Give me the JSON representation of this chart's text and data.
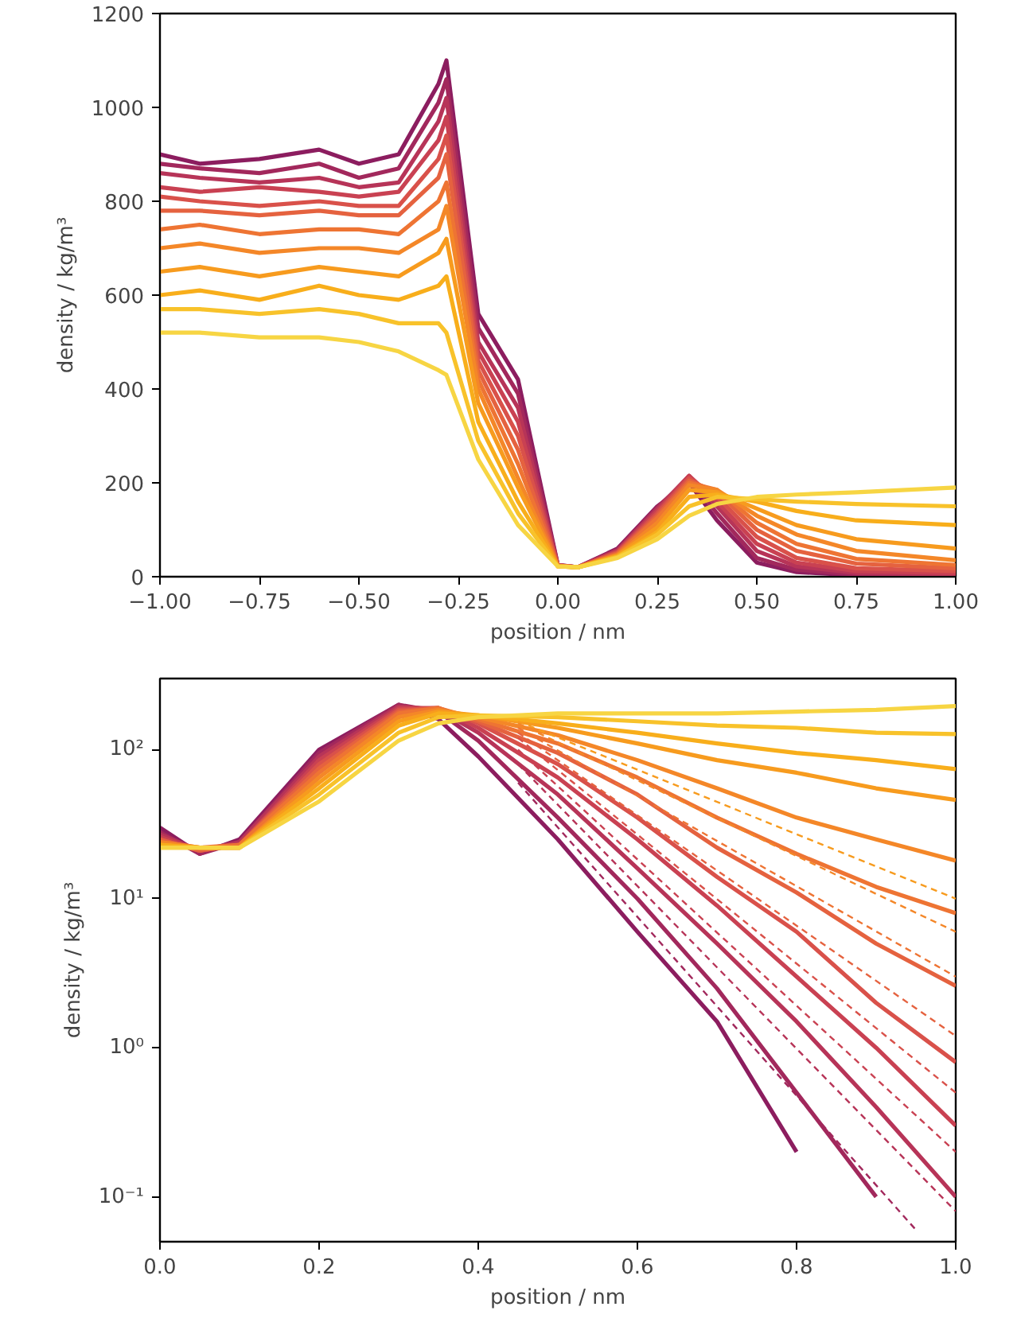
{
  "chart_data": [
    {
      "type": "line",
      "xlabel": "position / nm",
      "ylabel": "density / kg/m³",
      "xlim": [
        -1,
        1
      ],
      "ylim": [
        0,
        1200
      ],
      "xticks": [
        {
          "value": -1,
          "label": "−1.00"
        },
        {
          "value": -0.75,
          "label": "−0.75"
        },
        {
          "value": -0.5,
          "label": "−0.50"
        },
        {
          "value": -0.25,
          "label": "−0.25"
        },
        {
          "value": 0,
          "label": "0.00"
        },
        {
          "value": 0.25,
          "label": "0.25"
        },
        {
          "value": 0.5,
          "label": "0.50"
        },
        {
          "value": 0.75,
          "label": "0.75"
        },
        {
          "value": 1,
          "label": "1.00"
        }
      ],
      "yticks": [
        0,
        200,
        400,
        600,
        800,
        1000,
        1200
      ],
      "x": [
        -1,
        -0.9,
        -0.75,
        -0.6,
        -0.5,
        -0.4,
        -0.3,
        -0.28,
        -0.2,
        -0.1,
        0,
        0.05,
        0.15,
        0.25,
        0.33,
        0.4,
        0.5,
        0.6,
        0.75,
        1
      ],
      "series": [
        {
          "color": "#8c1d5f",
          "values": [
            900,
            880,
            890,
            910,
            880,
            900,
            1050,
            1100,
            560,
            420,
            25,
            20,
            60,
            150,
            200,
            120,
            30,
            10,
            3,
            2
          ]
        },
        {
          "color": "#a2285c",
          "values": [
            880,
            870,
            860,
            880,
            850,
            870,
            1010,
            1060,
            530,
            390,
            25,
            20,
            58,
            148,
            210,
            135,
            40,
            15,
            5,
            3
          ]
        },
        {
          "color": "#b73458",
          "values": [
            860,
            850,
            840,
            850,
            830,
            840,
            970,
            1020,
            500,
            360,
            24,
            20,
            56,
            145,
            215,
            150,
            55,
            22,
            8,
            5
          ]
        },
        {
          "color": "#c94152",
          "values": [
            830,
            820,
            830,
            820,
            810,
            820,
            930,
            980,
            480,
            330,
            24,
            20,
            54,
            140,
            215,
            160,
            70,
            30,
            12,
            8
          ]
        },
        {
          "color": "#d9514a",
          "values": [
            810,
            800,
            790,
            800,
            790,
            790,
            890,
            940,
            460,
            300,
            24,
            20,
            52,
            135,
            210,
            170,
            85,
            40,
            18,
            12
          ]
        },
        {
          "color": "#e5623f",
          "values": [
            780,
            780,
            770,
            780,
            770,
            770,
            850,
            900,
            440,
            270,
            23,
            20,
            50,
            130,
            205,
            180,
            100,
            55,
            28,
            18
          ]
        },
        {
          "color": "#ee7433",
          "values": [
            740,
            750,
            730,
            740,
            740,
            730,
            800,
            840,
            420,
            240,
            23,
            20,
            48,
            125,
            200,
            185,
            115,
            70,
            38,
            25
          ]
        },
        {
          "color": "#f48728",
          "values": [
            700,
            710,
            690,
            700,
            700,
            690,
            740,
            790,
            400,
            210,
            23,
            20,
            46,
            115,
            195,
            185,
            130,
            90,
            55,
            35
          ]
        },
        {
          "color": "#f79b1e",
          "values": [
            650,
            660,
            640,
            660,
            650,
            640,
            690,
            720,
            370,
            190,
            22,
            20,
            45,
            105,
            185,
            180,
            145,
            110,
            80,
            60
          ]
        },
        {
          "color": "#f8ae1b",
          "values": [
            600,
            610,
            590,
            620,
            600,
            590,
            620,
            640,
            330,
            160,
            22,
            20,
            43,
            95,
            170,
            175,
            160,
            140,
            120,
            110
          ]
        },
        {
          "color": "#f8c22a",
          "values": [
            570,
            570,
            560,
            570,
            560,
            540,
            540,
            520,
            290,
            135,
            22,
            20,
            42,
            90,
            150,
            170,
            165,
            160,
            155,
            150
          ]
        },
        {
          "color": "#f7d543",
          "values": [
            520,
            520,
            510,
            510,
            500,
            480,
            440,
            430,
            250,
            110,
            22,
            20,
            40,
            80,
            130,
            155,
            170,
            175,
            180,
            190
          ]
        }
      ]
    },
    {
      "type": "line",
      "log": "y",
      "xlabel": "position / nm",
      "ylabel": "density / kg/m³",
      "xlim": [
        0,
        1
      ],
      "ylim": [
        0.05,
        300
      ],
      "xticks": [
        {
          "value": 0,
          "label": "0.0"
        },
        {
          "value": 0.2,
          "label": "0.2"
        },
        {
          "value": 0.4,
          "label": "0.4"
        },
        {
          "value": 0.6,
          "label": "0.6"
        },
        {
          "value": 0.8,
          "label": "0.8"
        },
        {
          "value": 1,
          "label": "1.0"
        }
      ],
      "yticks": [
        {
          "value": 0.1,
          "label": "10⁻¹"
        },
        {
          "value": 1,
          "label": "10⁰"
        },
        {
          "value": 10,
          "label": "10¹"
        },
        {
          "value": 100,
          "label": "10²"
        }
      ],
      "x": [
        0,
        0.05,
        0.1,
        0.2,
        0.3,
        0.35,
        0.4,
        0.5,
        0.6,
        0.7,
        0.8,
        0.9,
        1.0
      ],
      "series": [
        {
          "color": "#8c1d5f",
          "values": [
            30,
            20,
            25,
            100,
            200,
            160,
            90,
            25,
            6,
            1.5,
            0.2,
            null,
            null
          ]
        },
        {
          "color": "#a2285c",
          "values": [
            28,
            20,
            24,
            95,
            200,
            180,
            115,
            35,
            10,
            2.5,
            0.5,
            0.1,
            null
          ]
        },
        {
          "color": "#b73458",
          "values": [
            27,
            21,
            24,
            90,
            195,
            185,
            130,
            50,
            16,
            5,
            1.5,
            0.4,
            0.1
          ]
        },
        {
          "color": "#c94152",
          "values": [
            26,
            21,
            23,
            85,
            190,
            190,
            140,
            65,
            25,
            9,
            3,
            1,
            0.3
          ]
        },
        {
          "color": "#d9514a",
          "values": [
            25,
            21,
            23,
            80,
            185,
            190,
            150,
            80,
            35,
            14,
            6,
            2,
            0.8
          ]
        },
        {
          "color": "#e5623f",
          "values": [
            25,
            21,
            23,
            75,
            180,
            190,
            155,
            95,
            50,
            22,
            11,
            5,
            2.6
          ]
        },
        {
          "color": "#ee7433",
          "values": [
            24,
            22,
            23,
            70,
            175,
            190,
            160,
            110,
            65,
            35,
            20,
            12,
            8
          ]
        },
        {
          "color": "#f48728",
          "values": [
            24,
            22,
            22,
            65,
            165,
            185,
            165,
            125,
            85,
            55,
            35,
            25,
            18
          ]
        },
        {
          "color": "#f79b1e",
          "values": [
            23,
            22,
            22,
            60,
            155,
            180,
            170,
            140,
            110,
            85,
            70,
            55,
            46
          ]
        },
        {
          "color": "#f8ae1b",
          "values": [
            23,
            22,
            22,
            55,
            145,
            175,
            170,
            150,
            130,
            110,
            95,
            85,
            74
          ]
        },
        {
          "color": "#f8c22a",
          "values": [
            22,
            22,
            22,
            50,
            130,
            165,
            170,
            165,
            155,
            145,
            140,
            130,
            127
          ]
        },
        {
          "color": "#f7d543",
          "values": [
            22,
            22,
            22,
            45,
            115,
            150,
            165,
            175,
            175,
            175,
            180,
            185,
            196
          ]
        },
        {
          "color": "#a2285c",
          "line_style": "dashed",
          "x": [
            0.45,
            0.95
          ],
          "values": [
            60,
            0.06
          ]
        },
        {
          "color": "#b73458",
          "line_style": "dashed",
          "x": [
            0.45,
            1.0
          ],
          "values": [
            80,
            0.08
          ]
        },
        {
          "color": "#c94152",
          "line_style": "dashed",
          "x": [
            0.45,
            1.0
          ],
          "values": [
            100,
            0.2
          ]
        },
        {
          "color": "#d9514a",
          "line_style": "dashed",
          "x": [
            0.45,
            1.0
          ],
          "values": [
            120,
            0.5
          ]
        },
        {
          "color": "#e5623f",
          "line_style": "dashed",
          "x": [
            0.45,
            1.0
          ],
          "values": [
            130,
            1.2
          ]
        },
        {
          "color": "#ee7433",
          "line_style": "dashed",
          "x": [
            0.45,
            1.0
          ],
          "values": [
            140,
            3
          ]
        },
        {
          "color": "#f48728",
          "line_style": "dashed",
          "x": [
            0.45,
            1.0
          ],
          "values": [
            150,
            6
          ]
        },
        {
          "color": "#f79b1e",
          "line_style": "dashed",
          "x": [
            0.45,
            1.0
          ],
          "values": [
            155,
            10
          ]
        }
      ]
    }
  ]
}
